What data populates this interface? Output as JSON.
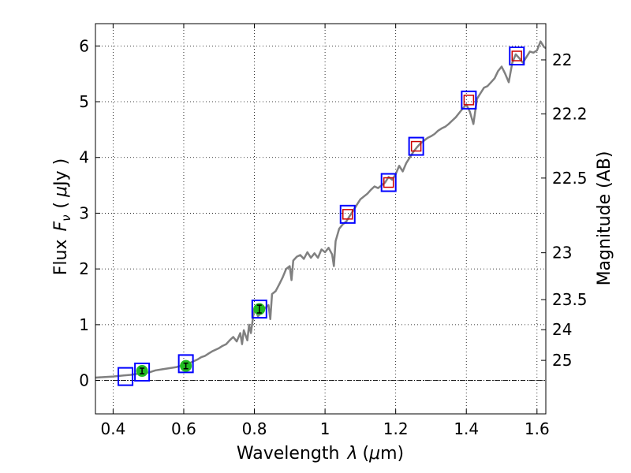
{
  "chart_data": {
    "type": "line",
    "xlabel_prefix": "Wavelength",
    "xlabel_symbol": "λ",
    "xlabel_unit_open": "(",
    "xlabel_unit_mu": "μ",
    "xlabel_unit_rest": "m)",
    "ylabel_prefix": "Flux",
    "ylabel_symbol": "F",
    "ylabel_subscript": "ν",
    "ylabel_unit_open": "(",
    "ylabel_unit_mu": "μ",
    "ylabel_unit_rest": "Jy )",
    "y2label": "Magnitude (AB)",
    "xlim": [
      0.35,
      1.625
    ],
    "ylim": [
      -0.6,
      6.4
    ],
    "xticks": [
      0.4,
      0.6,
      0.8,
      1.0,
      1.2,
      1.4,
      1.6
    ],
    "xtick_labels": [
      "0.4",
      "0.6",
      "0.8",
      "1",
      "1.2",
      "1.4",
      "1.6"
    ],
    "yticks": [
      0,
      1,
      2,
      3,
      4,
      5,
      6
    ],
    "ytick_labels": [
      "0",
      "1",
      "2",
      "3",
      "4",
      "5",
      "6"
    ],
    "y2ticks": [
      {
        "label": "22",
        "flux": 5.75
      },
      {
        "label": "22.2",
        "flux": 4.78
      },
      {
        "label": "22.5",
        "flux": 3.63
      },
      {
        "label": "23",
        "flux": 2.29
      },
      {
        "label": "23.5",
        "flux": 1.45
      },
      {
        "label": "24",
        "flux": 0.91
      },
      {
        "label": "25",
        "flux": 0.36
      }
    ],
    "grid": true,
    "zero_line": true,
    "colors": {
      "spectrum": "#808080",
      "box_outer": "#0000ff",
      "box_inner": "#cc0000",
      "photometry": "#22bb22",
      "errorbar": "#000000",
      "grid": "#000000"
    },
    "spectrum": {
      "x": [
        0.35,
        0.4,
        0.43,
        0.45,
        0.47,
        0.49,
        0.5,
        0.52,
        0.54,
        0.56,
        0.58,
        0.6,
        0.62,
        0.64,
        0.65,
        0.66,
        0.67,
        0.68,
        0.7,
        0.71,
        0.72,
        0.73,
        0.74,
        0.75,
        0.76,
        0.765,
        0.77,
        0.78,
        0.785,
        0.79,
        0.8,
        0.805,
        0.81,
        0.82,
        0.83,
        0.84,
        0.845,
        0.85,
        0.86,
        0.87,
        0.88,
        0.89,
        0.9,
        0.905,
        0.91,
        0.92,
        0.93,
        0.94,
        0.95,
        0.96,
        0.97,
        0.98,
        0.99,
        1.0,
        1.01,
        1.02,
        1.025,
        1.03,
        1.04,
        1.05,
        1.06,
        1.07,
        1.08,
        1.09,
        1.1,
        1.11,
        1.12,
        1.13,
        1.14,
        1.15,
        1.16,
        1.17,
        1.18,
        1.19,
        1.2,
        1.21,
        1.22,
        1.23,
        1.24,
        1.25,
        1.26,
        1.27,
        1.28,
        1.29,
        1.3,
        1.31,
        1.32,
        1.33,
        1.34,
        1.35,
        1.36,
        1.37,
        1.38,
        1.39,
        1.4,
        1.41,
        1.42,
        1.43,
        1.44,
        1.45,
        1.46,
        1.47,
        1.48,
        1.49,
        1.5,
        1.51,
        1.52,
        1.53,
        1.54,
        1.55,
        1.56,
        1.57,
        1.58,
        1.59,
        1.6,
        1.61,
        1.62,
        1.625
      ],
      "y": [
        0.05,
        0.07,
        0.09,
        0.1,
        0.12,
        0.15,
        0.14,
        0.18,
        0.2,
        0.22,
        0.24,
        0.28,
        0.32,
        0.38,
        0.42,
        0.44,
        0.48,
        0.52,
        0.58,
        0.62,
        0.65,
        0.72,
        0.78,
        0.7,
        0.85,
        0.65,
        0.9,
        0.72,
        1.0,
        0.85,
        1.3,
        1.25,
        1.15,
        1.22,
        1.3,
        1.35,
        1.1,
        1.55,
        1.6,
        1.72,
        1.85,
        2.0,
        2.05,
        1.8,
        2.15,
        2.22,
        2.25,
        2.18,
        2.3,
        2.2,
        2.28,
        2.2,
        2.35,
        2.3,
        2.38,
        2.26,
        2.05,
        2.5,
        2.72,
        2.8,
        2.85,
        2.95,
        3.05,
        3.15,
        3.25,
        3.3,
        3.35,
        3.42,
        3.48,
        3.45,
        3.5,
        3.55,
        3.65,
        3.6,
        3.7,
        3.85,
        3.75,
        3.9,
        4.0,
        4.1,
        4.18,
        4.25,
        4.3,
        4.35,
        4.38,
        4.42,
        4.48,
        4.52,
        4.55,
        4.6,
        4.66,
        4.72,
        4.8,
        4.88,
        4.95,
        4.82,
        4.6,
        5.05,
        5.15,
        5.25,
        5.28,
        5.35,
        5.42,
        5.55,
        5.63,
        5.5,
        5.35,
        5.7,
        5.85,
        5.78,
        5.7,
        5.8,
        5.9,
        5.88,
        5.92,
        6.08,
        5.98,
        5.96
      ]
    },
    "model_boxes": [
      {
        "x": 0.435,
        "y": 0.07,
        "inner": false
      },
      {
        "x": 0.482,
        "y": 0.15,
        "inner": false
      },
      {
        "x": 0.606,
        "y": 0.3,
        "inner": false
      },
      {
        "x": 0.814,
        "y": 1.28,
        "inner": false
      },
      {
        "x": 1.064,
        "y": 2.98,
        "inner": true
      },
      {
        "x": 1.18,
        "y": 3.55,
        "inner": true
      },
      {
        "x": 1.258,
        "y": 4.2,
        "inner": true
      },
      {
        "x": 1.407,
        "y": 5.03,
        "inner": true
      },
      {
        "x": 1.543,
        "y": 5.82,
        "inner": true
      }
    ],
    "photometry": [
      {
        "x": 0.482,
        "y": 0.17,
        "err": 0.05
      },
      {
        "x": 0.606,
        "y": 0.26,
        "err": 0.05
      },
      {
        "x": 0.814,
        "y": 1.28,
        "err": 0.07
      }
    ]
  }
}
